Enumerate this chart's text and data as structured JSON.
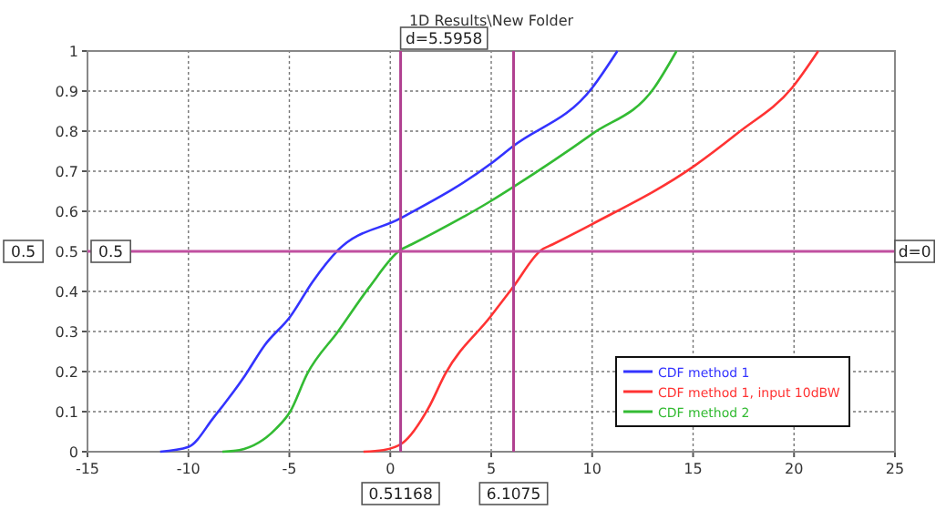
{
  "chart_data": {
    "type": "line",
    "title": "1D Results\\New Folder",
    "xlim": [
      -15,
      25
    ],
    "xticks": [
      -15,
      -10,
      -5,
      0,
      5,
      10,
      15,
      20,
      25
    ],
    "ylim": [
      0,
      1
    ],
    "yticks": [
      0,
      0.1,
      0.2,
      0.3,
      0.4,
      0.5,
      0.6,
      0.7,
      0.8,
      0.9,
      1
    ],
    "grid": true,
    "legend": "bottom right",
    "line_style": "solid",
    "marker": "none",
    "series": [
      {
        "name": "CDF method 1",
        "color": "#3333ff",
        "x": [
          -11.4,
          -10.0,
          -8.74,
          -7.2,
          -6.22,
          -4.96,
          -3.85,
          -2.59,
          0.49,
          4.96,
          6.07,
          10.0,
          11.25
        ],
        "values": [
          0,
          0.012,
          0.086,
          0.19,
          0.266,
          0.337,
          0.424,
          0.503,
          0.582,
          0.718,
          0.762,
          0.908,
          1.0
        ]
      },
      {
        "name": "CDF method 1, input 10dBW",
        "color": "#ff3333",
        "x": [
          -1.33,
          -0.35,
          0.62,
          1.88,
          2.72,
          4.96,
          6.07,
          7.47,
          8.03,
          10.0,
          15.0,
          17.26,
          19.9,
          21.2
        ],
        "values": [
          0,
          0.004,
          0.022,
          0.108,
          0.194,
          0.337,
          0.41,
          0.503,
          0.517,
          0.568,
          0.711,
          0.797,
          0.908,
          1.0
        ]
      },
      {
        "name": "CDF method 2",
        "color": "#33bb33",
        "x": [
          -8.32,
          -7.48,
          -5.67,
          -4.96,
          -4.12,
          -2.59,
          -1.05,
          0.49,
          1.04,
          4.96,
          6.07,
          10.0,
          13.07,
          14.18
        ],
        "values": [
          0,
          0.004,
          0.057,
          0.1,
          0.194,
          0.3,
          0.41,
          0.503,
          0.517,
          0.625,
          0.66,
          0.793,
          0.908,
          1.0
        ]
      }
    ],
    "ref_lines": [
      {
        "axis": "x",
        "value": 0.51168,
        "label": "0.51168",
        "color": "#b04090"
      },
      {
        "axis": "x",
        "value": 6.1075,
        "label": "6.1075",
        "color": "#b04090"
      },
      {
        "axis": "y",
        "value": 0.5,
        "label": "0.5",
        "color": "#c050a0"
      }
    ],
    "annotations": [
      "d=5.5958",
      "d=0",
      "0.5"
    ]
  }
}
